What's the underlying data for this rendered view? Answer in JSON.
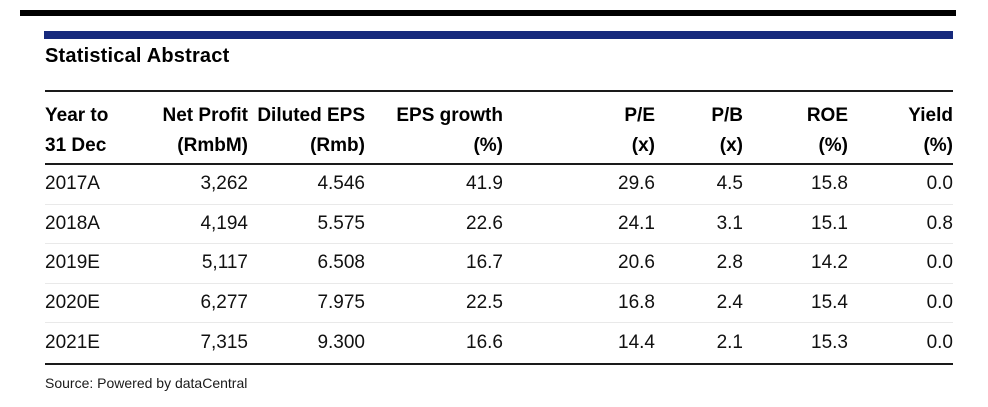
{
  "decor": {
    "top_bar_color": "#000000",
    "brand_bar_color": "#16297c"
  },
  "title": "Statistical Abstract",
  "table": {
    "columns": [
      {
        "line1": "Year to",
        "line2": "31 Dec"
      },
      {
        "line1": "Net Profit",
        "line2": "(RmbM)"
      },
      {
        "line1": "Diluted EPS",
        "line2": "(Rmb)"
      },
      {
        "line1": "EPS growth",
        "line2": "(%)"
      },
      {
        "line1": "P/E",
        "line2": "(x)"
      },
      {
        "line1": "P/B",
        "line2": "(x)"
      },
      {
        "line1": "ROE",
        "line2": "(%)"
      },
      {
        "line1": "Yield",
        "line2": "(%)"
      }
    ],
    "rows": [
      [
        "2017A",
        "3,262",
        "4.546",
        "41.9",
        "29.6",
        "4.5",
        "15.8",
        "0.0"
      ],
      [
        "2018A",
        "4,194",
        "5.575",
        "22.6",
        "24.1",
        "3.1",
        "15.1",
        "0.8"
      ],
      [
        "2019E",
        "5,117",
        "6.508",
        "16.7",
        "20.6",
        "2.8",
        "14.2",
        "0.0"
      ],
      [
        "2020E",
        "6,277",
        "7.975",
        "22.5",
        "16.8",
        "2.4",
        "15.4",
        "0.0"
      ],
      [
        "2021E",
        "7,315",
        "9.300",
        "16.6",
        "14.4",
        "2.1",
        "15.3",
        "0.0"
      ]
    ]
  },
  "source_note": "Source: Powered by dataCentral"
}
